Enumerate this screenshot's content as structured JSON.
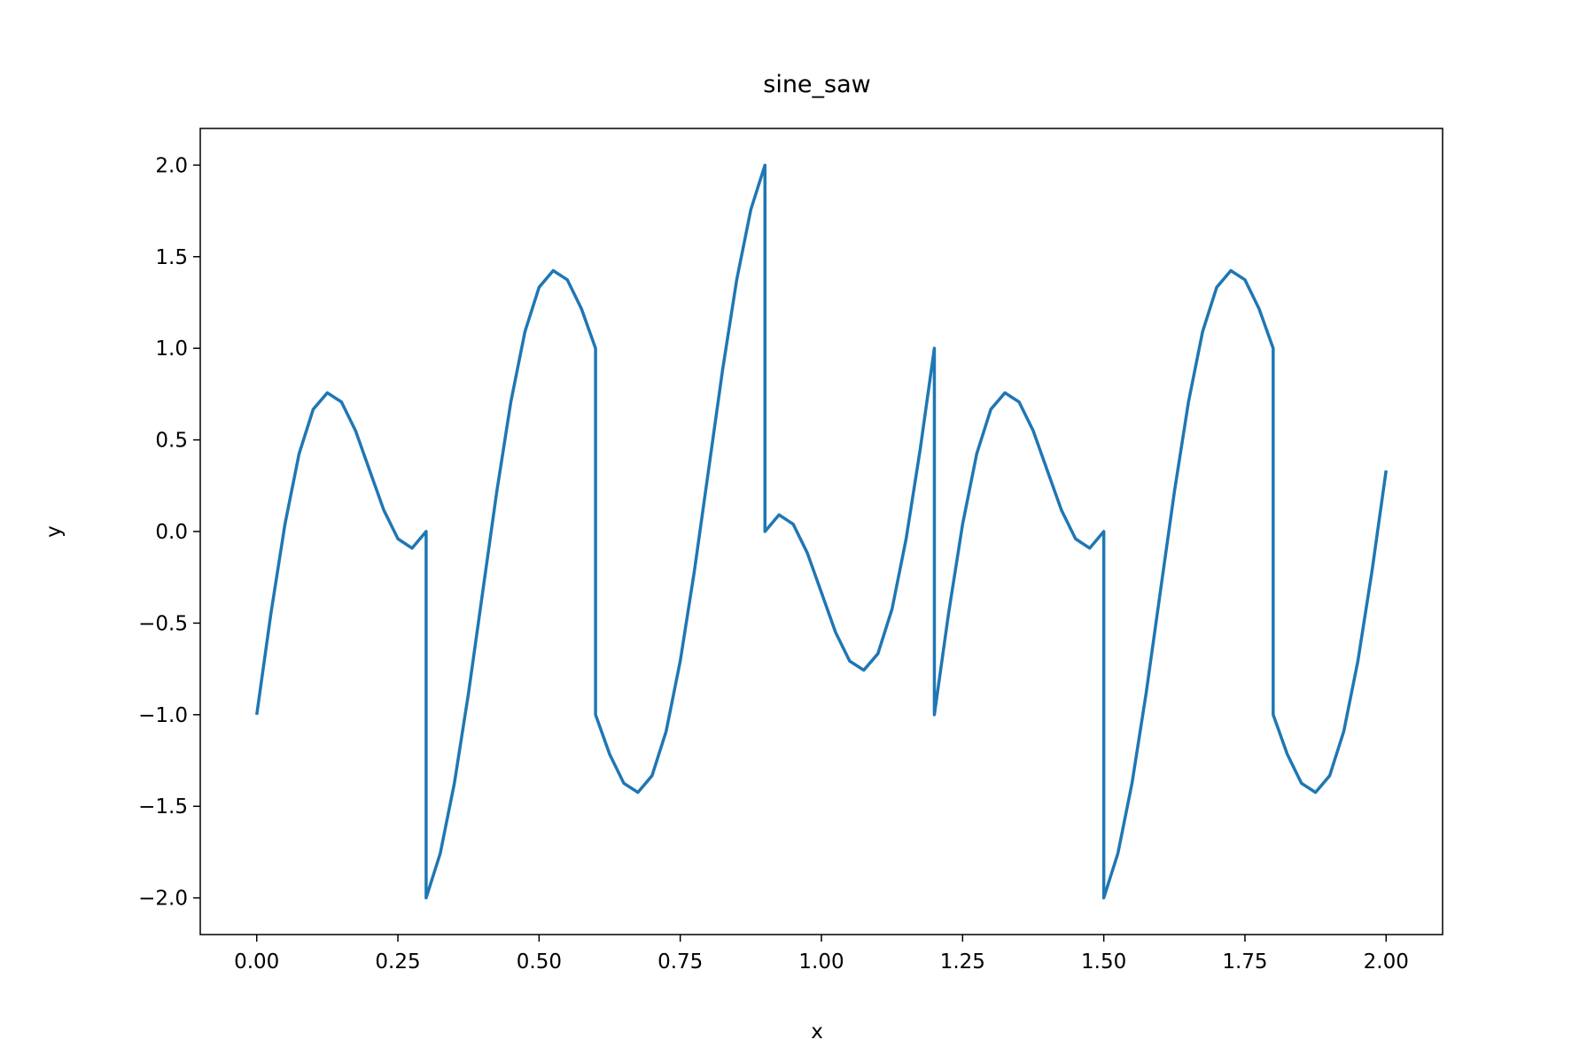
{
  "chart_data": {
    "type": "line",
    "title": "sine_saw",
    "xlabel": "x",
    "ylabel": "y",
    "color": "#1f77b4",
    "x": [
      0,
      0.025,
      0.05,
      0.075,
      0.1,
      0.125,
      0.15,
      0.175,
      0.2,
      0.225,
      0.25,
      0.275,
      0.3,
      0.3,
      0.325,
      0.35,
      0.375,
      0.4,
      0.425,
      0.45,
      0.475,
      0.5,
      0.525,
      0.55,
      0.575,
      0.6,
      0.6,
      0.625,
      0.65,
      0.675,
      0.7,
      0.725,
      0.75,
      0.775,
      0.8,
      0.825,
      0.85,
      0.875,
      0.9,
      0.9,
      0.925,
      0.95,
      0.975,
      1.0,
      1.025,
      1.05,
      1.075,
      1.1,
      1.125,
      1.15,
      1.175,
      1.2,
      1.2,
      1.225,
      1.25,
      1.275,
      1.3,
      1.325,
      1.35,
      1.375,
      1.4,
      1.425,
      1.45,
      1.475,
      1.5,
      1.5,
      1.525,
      1.55,
      1.575,
      1.6,
      1.625,
      1.65,
      1.675,
      1.7,
      1.725,
      1.75,
      1.775,
      1.8,
      1.8,
      1.825,
      1.85,
      1.875,
      1.9,
      1.925,
      1.95,
      1.975,
      2.0
    ],
    "values": [
      -1,
      -0.45,
      0.04,
      0.424,
      0.667,
      0.757,
      0.707,
      0.55,
      0.333,
      0.117,
      -0.04,
      -0.091,
      0,
      -2,
      -1.757,
      -1.374,
      -0.883,
      -0.333,
      0.216,
      0.707,
      1.091,
      1.333,
      1.424,
      1.374,
      1.216,
      1,
      -1,
      -1.216,
      -1.374,
      -1.424,
      -1.333,
      -1.091,
      -0.707,
      -0.216,
      0.333,
      0.883,
      1.374,
      1.757,
      2,
      0,
      0.091,
      0.04,
      -0.117,
      -0.333,
      -0.55,
      -0.707,
      -0.757,
      -0.667,
      -0.424,
      -0.04,
      0.45,
      1,
      -1,
      -0.45,
      0.04,
      0.424,
      0.667,
      0.757,
      0.707,
      0.55,
      0.333,
      0.117,
      -0.04,
      -0.091,
      0,
      -2,
      -1.757,
      -1.374,
      -0.883,
      -0.333,
      0.216,
      0.707,
      1.091,
      1.333,
      1.424,
      1.374,
      1.216,
      1,
      -1,
      -1.216,
      -1.374,
      -1.424,
      -1.333,
      -1.091,
      -0.707,
      -0.216,
      0.333
    ],
    "xlim": [
      -0.1,
      2.1
    ],
    "ylim": [
      -2.2,
      2.2
    ],
    "xticks": [
      {
        "value": 0,
        "label": "0.00"
      },
      {
        "value": 0.25,
        "label": "0.25"
      },
      {
        "value": 0.5,
        "label": "0.50"
      },
      {
        "value": 0.75,
        "label": "0.75"
      },
      {
        "value": 1,
        "label": "1.00"
      },
      {
        "value": 1.25,
        "label": "1.25"
      },
      {
        "value": 1.5,
        "label": "1.50"
      },
      {
        "value": 1.75,
        "label": "1.75"
      },
      {
        "value": 2,
        "label": "2.00"
      }
    ],
    "yticks": [
      {
        "value": -2,
        "label": "−2.0"
      },
      {
        "value": -1.5,
        "label": "−1.5"
      },
      {
        "value": -1,
        "label": "−1.0"
      },
      {
        "value": -0.5,
        "label": "−0.5"
      },
      {
        "value": 0,
        "label": "0.0"
      },
      {
        "value": 0.5,
        "label": "0.5"
      },
      {
        "value": 1,
        "label": "1.0"
      },
      {
        "value": 1.5,
        "label": "1.5"
      },
      {
        "value": 2,
        "label": "2.0"
      }
    ],
    "grid": false
  }
}
